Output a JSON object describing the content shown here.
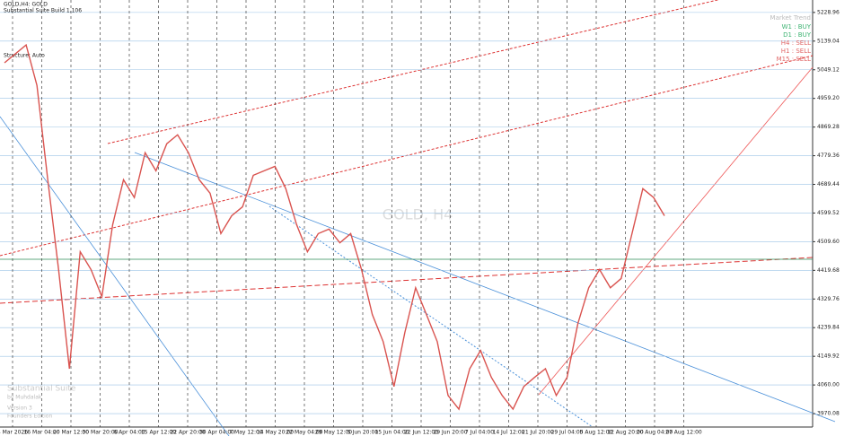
{
  "chart_data": {
    "type": "line",
    "title": "GOLD,H4: GOLD",
    "info_lines": [
      "Substantial Suite Build 1.106",
      "Structure: Auto"
    ],
    "watermark": "GOLD, H4",
    "color": "#d9534f",
    "values": [
      5071,
      5099,
      5127,
      5000,
      4704,
      4422,
      4111,
      4478,
      4422,
      4337,
      4563,
      4704,
      4648,
      4789,
      4732,
      4817,
      4845,
      4789,
      4704,
      4662,
      4535,
      4591,
      4619,
      4718,
      4732,
      4746,
      4676,
      4563,
      4478,
      4535,
      4549,
      4506,
      4535,
      4422,
      4281,
      4196,
      4055,
      4224,
      4365,
      4281,
      4196,
      4027,
      3984,
      4111,
      4168,
      4084,
      4027,
      3984,
      4055,
      4084,
      4111,
      4027,
      4084,
      4253,
      4365,
      4422,
      4365,
      4394,
      4535,
      4676,
      4648,
      4591
    ],
    "ylim": [
      3928,
      5268
    ],
    "yticks": [
      3970.08,
      {
        "value": 4060,
        "label": "4060.00"
      },
      4149.92,
      4239.84,
      4329.76,
      4419.68,
      {
        "value": 4509.6,
        "label": "4509.60"
      },
      4599.52,
      4689.44,
      4779.36,
      4869.28,
      {
        "value": 4959.2,
        "label": "4959.20"
      },
      5049.12,
      5139.04,
      5228.96
    ],
    "x_labels": [
      "4 Mar 2026",
      "16 Mar 04:00",
      "20 Mar 12:00",
      "30 Mar 20:00",
      "6 Apr 04:00",
      "15 Apr 12:00",
      "22 Apr 20:00",
      "30 Apr 04:00",
      "7 May 12:00",
      "14 May 20:00",
      "22 May 04:00",
      "29 May 12:00",
      "5 Jun 20:00",
      "15 Jun 04:00",
      "22 Jun 12:00",
      "29 Jun 20:00",
      "7 Jul 04:00",
      "14 Jul 12:00",
      "21 Jul 20:00",
      "29 Jul 04:00",
      "5 Aug 12:00",
      "12 Aug 20:00",
      "20 Aug 04:00",
      "27 Aug 12:00"
    ],
    "grid": true,
    "trend_panel": {
      "title": "Market Trend",
      "rows": [
        {
          "text": "W1 : BUY",
          "color": "#3cb371"
        },
        {
          "text": "D1 : BUY",
          "color": "#3cb371"
        },
        {
          "text": "H4 : SELL",
          "color": "#e06666"
        },
        {
          "text": "H1 : SELL",
          "color": "#e06666"
        },
        {
          "text": "M15 : SELL",
          "color": "#e06666"
        }
      ]
    },
    "footer_lines": [
      "Substantial Suite",
      "by Muhdalak",
      "Version 3",
      "Founders Edition"
    ]
  }
}
